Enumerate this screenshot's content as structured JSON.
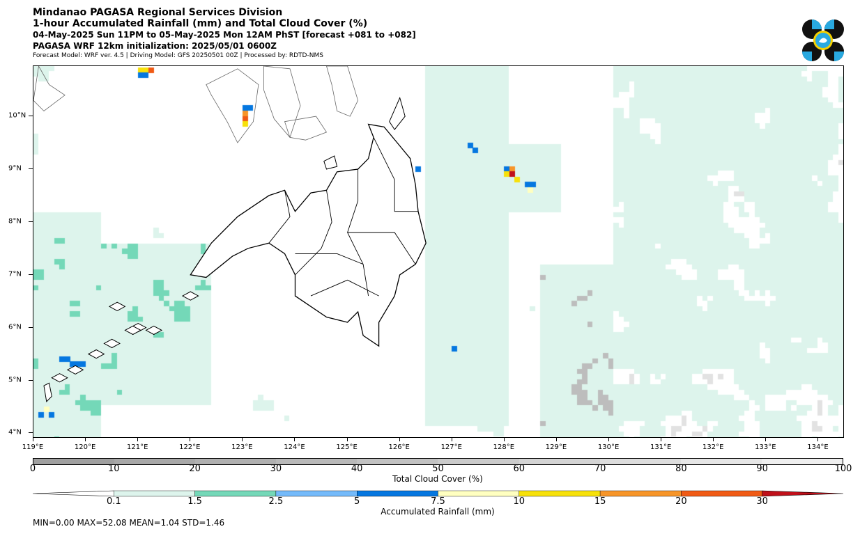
{
  "header": {
    "line1": "Mindanao PAGASA Regional Services Division",
    "line2": "1-hour Accumulated Rainfall (mm) and Total Cloud Cover (%)",
    "line3": "04-May-2025 Sun 11PM to 05-May-2025 Mon 12AM PhST [forecast +081 to +082]",
    "line4": "PAGASA WRF 12km initialization: 2025/05/01 0600Z",
    "line5": "Forecast Model: WRF ver. 4.5 | Driving Model: GFS 20250501 00Z | Processed by: RDTD-NMS"
  },
  "map": {
    "lat_labels": [
      "10°N",
      "9°N",
      "8°N",
      "7°N",
      "6°N",
      "5°N",
      "4°N"
    ],
    "lon_labels": [
      "119°E",
      "120°E",
      "121°E",
      "122°E",
      "123°E",
      "124°E",
      "125°E",
      "126°E",
      "127°E",
      "128°E",
      "129°E",
      "130°E",
      "131°E",
      "132°E",
      "133°E",
      "134°E"
    ],
    "lon_range": [
      119.0,
      134.5
    ],
    "lat_range": [
      3.9,
      10.95
    ]
  },
  "cloud_colorbar": {
    "title": "Total Cloud Cover (%)",
    "ticks": [
      "0",
      "10",
      "20",
      "30",
      "40",
      "50",
      "60",
      "70",
      "80",
      "90",
      "100"
    ],
    "colors": [
      "#a0a0a0",
      "#a8a8a8",
      "#b0b0b0",
      "#b9b9b9",
      "#c2c2c2",
      "#cbcbcb",
      "#d4d4d4",
      "#dddddd",
      "#e6e6e6",
      "#efefef"
    ]
  },
  "rain_colorbar": {
    "title": "Accumulated Rainfall (mm)",
    "ticks": [
      "0.1",
      "1.5",
      "2.5",
      "5",
      "7.5",
      "10",
      "15",
      "20",
      "30"
    ],
    "colors": [
      "#ddf4ec",
      "#74d8b8",
      "#74bafa",
      "#0577e0",
      "#ffffc0",
      "#f7e10a",
      "#f79528",
      "#f05a14",
      "#c0101a"
    ]
  },
  "stats": "MIN=0.00   MAX=52.08   MEAN=1.04   STD=1.46"
}
